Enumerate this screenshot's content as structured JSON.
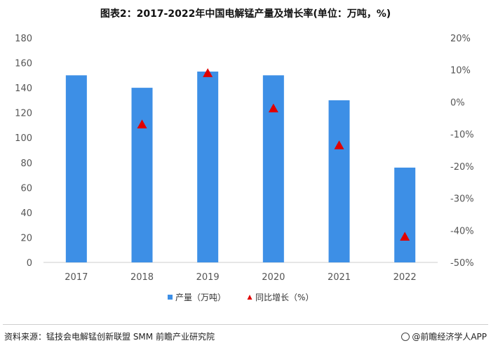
{
  "chart_data": {
    "type": "bar",
    "title": "图表2：2017-2022年中国电解锰产量及增长率(单位：万吨，%)",
    "categories": [
      "2017",
      "2018",
      "2019",
      "2020",
      "2021",
      "2022"
    ],
    "series": [
      {
        "name": "产量（万吨）",
        "type": "bar",
        "axis": "left",
        "color": "#3d8fe6",
        "values": [
          150,
          140,
          153,
          150,
          130,
          76
        ]
      },
      {
        "name": "同比增长（%）",
        "type": "scatter",
        "marker": "triangle",
        "axis": "right",
        "color": "#e00000",
        "values": [
          null,
          -7,
          9,
          -2,
          -13.5,
          -42
        ]
      }
    ],
    "y_left": {
      "ylim": [
        0,
        180
      ],
      "ticks": [
        "0",
        "20",
        "40",
        "60",
        "80",
        "100",
        "120",
        "140",
        "160",
        "180"
      ]
    },
    "y_right": {
      "ylim": [
        -50,
        20
      ],
      "ticks": [
        "-50%",
        "-40%",
        "-30%",
        "-20%",
        "-10%",
        "0%",
        "10%",
        "20%"
      ]
    },
    "grid": false,
    "legend_position": "bottom"
  },
  "footer": {
    "source": "资料来源：锰技会电解锰创新联盟 SMM 前瞻产业研究院",
    "brand": "@前瞻经济学人APP"
  }
}
